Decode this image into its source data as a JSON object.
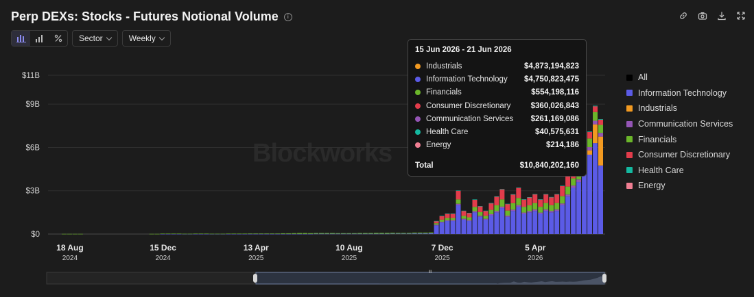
{
  "title": "Perp DEXs: Stocks - Futures Notional Volume",
  "toolbar": {
    "sector_label": "Sector",
    "period_label": "Weekly"
  },
  "watermark": "Blockworks",
  "icons": [
    "bar-chart-icon",
    "stacked-bar-icon",
    "percent-icon",
    "chevron-down-icon",
    "link-icon",
    "camera-icon",
    "download-icon",
    "expand-icon",
    "info-icon"
  ],
  "colors": {
    "background": "#1c1c1c",
    "Information Technology": "#5b5be6",
    "Industrials": "#f29a21",
    "Communication Services": "#9455b5",
    "Financials": "#6bb62a",
    "Consumer Discretionary": "#e23c4b",
    "Health Care": "#14b8a0",
    "Energy": "#ef7e92"
  },
  "legend": [
    {
      "name": "All",
      "color": "#000000"
    },
    {
      "name": "Information Technology",
      "color": "#5b5be6"
    },
    {
      "name": "Industrials",
      "color": "#f29a21"
    },
    {
      "name": "Communication Services",
      "color": "#9455b5"
    },
    {
      "name": "Financials",
      "color": "#6bb62a"
    },
    {
      "name": "Consumer Discretionary",
      "color": "#e23c4b"
    },
    {
      "name": "Health Care",
      "color": "#14b8a0"
    },
    {
      "name": "Energy",
      "color": "#ef7e92"
    }
  ],
  "tooltip": {
    "title": "15 Jun 2026 - 21 Jun 2026",
    "rows": [
      {
        "name": "Industrials",
        "value": "$4,873,194,823",
        "color": "#f29a21"
      },
      {
        "name": "Information Technology",
        "value": "$4,750,823,475",
        "color": "#5b5be6"
      },
      {
        "name": "Financials",
        "value": "$554,198,116",
        "color": "#6bb62a"
      },
      {
        "name": "Consumer Discretionary",
        "value": "$360,026,843",
        "color": "#e23c4b"
      },
      {
        "name": "Communication Services",
        "value": "$261,169,086",
        "color": "#9455b5"
      },
      {
        "name": "Health Care",
        "value": "$40,575,631",
        "color": "#14b8a0"
      },
      {
        "name": "Energy",
        "value": "$214,186",
        "color": "#ef7e92"
      }
    ],
    "total_label": "Total",
    "total_value": "$10,840,202,160"
  },
  "chart_data": {
    "type": "bar",
    "stacked": true,
    "y_unit": "USD (billions)",
    "ylim": [
      0,
      11
    ],
    "y_ticks": [
      {
        "value": 0,
        "label": "$0"
      },
      {
        "value": 3,
        "label": "$3B"
      },
      {
        "value": 6,
        "label": "$6B"
      },
      {
        "value": 9,
        "label": "$9B"
      },
      {
        "value": 11,
        "label": "$11B"
      }
    ],
    "x_ticks": [
      {
        "label": "18 Aug",
        "year": "2024",
        "index": 3
      },
      {
        "label": "15 Dec",
        "year": "2024",
        "index": 20
      },
      {
        "label": "13 Apr",
        "year": "2025",
        "index": 37
      },
      {
        "label": "10 Aug",
        "year": "2025",
        "index": 54
      },
      {
        "label": "7 Dec",
        "year": "2025",
        "index": 71
      },
      {
        "label": "5 Apr",
        "year": "2026",
        "index": 88
      }
    ],
    "grid": true,
    "legend_position": "right",
    "series": [
      {
        "name": "Information Technology",
        "values": [
          0,
          0,
          0,
          0,
          0,
          0,
          0,
          0,
          0,
          0,
          0,
          0,
          0,
          0,
          0,
          0,
          0,
          0,
          0,
          0,
          0.01,
          0.01,
          0.01,
          0.01,
          0.01,
          0.01,
          0.01,
          0.01,
          0.01,
          0.01,
          0.01,
          0.01,
          0.01,
          0.01,
          0.01,
          0.01,
          0.01,
          0.01,
          0.01,
          0.01,
          0.01,
          0.01,
          0.01,
          0.01,
          0.01,
          0.01,
          0.01,
          0.01,
          0.02,
          0.02,
          0.02,
          0.02,
          0.02,
          0.02,
          0.02,
          0.02,
          0.02,
          0.02,
          0.02,
          0.02,
          0.02,
          0.02,
          0.03,
          0.03,
          0.03,
          0.03,
          0.04,
          0.04,
          0.04,
          0.05,
          0.6,
          0.8,
          0.9,
          0.9,
          2.0,
          1.0,
          0.9,
          1.5,
          1.2,
          1.0,
          1.3,
          1.5,
          1.8,
          1.2,
          1.6,
          1.9,
          1.4,
          1.5,
          1.6,
          1.4,
          1.6,
          1.5,
          1.6,
          2.0,
          2.6,
          3.2,
          3.6,
          4.5,
          5.5,
          6.3,
          4.75
        ]
      },
      {
        "name": "Industrials",
        "values": [
          0,
          0,
          0,
          0,
          0,
          0,
          0,
          0,
          0,
          0,
          0,
          0,
          0,
          0,
          0,
          0,
          0,
          0,
          0,
          0,
          0,
          0,
          0,
          0,
          0,
          0,
          0,
          0,
          0,
          0,
          0,
          0,
          0,
          0,
          0,
          0,
          0,
          0,
          0,
          0,
          0,
          0,
          0,
          0,
          0,
          0,
          0,
          0,
          0,
          0,
          0,
          0,
          0,
          0,
          0,
          0,
          0,
          0,
          0,
          0,
          0,
          0,
          0,
          0,
          0,
          0,
          0,
          0,
          0,
          0,
          0,
          0,
          0,
          0,
          0,
          0,
          0,
          0,
          0,
          0,
          0,
          0,
          0,
          0,
          0,
          0,
          0,
          0,
          0,
          0,
          0,
          0,
          0,
          0,
          0,
          0,
          0,
          0,
          0.3,
          1.3,
          2.0,
          4.87
        ]
      },
      {
        "name": "Communication Services",
        "values": [
          0,
          0,
          0,
          0,
          0,
          0,
          0,
          0,
          0,
          0,
          0,
          0,
          0,
          0,
          0,
          0,
          0,
          0,
          0,
          0,
          0,
          0,
          0,
          0,
          0,
          0,
          0,
          0,
          0,
          0,
          0,
          0,
          0,
          0,
          0,
          0,
          0,
          0,
          0,
          0,
          0,
          0,
          0,
          0,
          0,
          0,
          0,
          0,
          0,
          0,
          0,
          0,
          0,
          0,
          0,
          0,
          0,
          0,
          0,
          0,
          0,
          0,
          0,
          0,
          0,
          0,
          0,
          0,
          0,
          0,
          0.05,
          0.05,
          0.06,
          0.06,
          0.1,
          0.06,
          0.06,
          0.08,
          0.07,
          0.06,
          0.08,
          0.09,
          0.1,
          0.08,
          0.09,
          0.1,
          0.09,
          0.09,
          0.1,
          0.09,
          0.1,
          0.1,
          0.1,
          0.12,
          0.14,
          0.16,
          0.18,
          0.2,
          0.22,
          0.25,
          0.26
        ]
      },
      {
        "name": "Financials",
        "values": [
          0,
          0,
          0.01,
          0.01,
          0.01,
          0.01,
          0,
          0,
          0,
          0,
          0,
          0,
          0,
          0,
          0,
          0,
          0,
          0,
          0.01,
          0.01,
          0.02,
          0.02,
          0.02,
          0.02,
          0.01,
          0.01,
          0.02,
          0.02,
          0.02,
          0.01,
          0.01,
          0.01,
          0.02,
          0.02,
          0.02,
          0.02,
          0.03,
          0.03,
          0.03,
          0.03,
          0.03,
          0.03,
          0.04,
          0.04,
          0.05,
          0.06,
          0.06,
          0.05,
          0.05,
          0.05,
          0.05,
          0.05,
          0.04,
          0.04,
          0.04,
          0.04,
          0.05,
          0.05,
          0.05,
          0.06,
          0.06,
          0.06,
          0.06,
          0.05,
          0.05,
          0.05,
          0.06,
          0.06,
          0.06,
          0.06,
          0.1,
          0.15,
          0.15,
          0.15,
          0.3,
          0.2,
          0.2,
          0.3,
          0.25,
          0.2,
          0.3,
          0.4,
          0.5,
          0.35,
          0.45,
          0.5,
          0.4,
          0.4,
          0.45,
          0.4,
          0.45,
          0.4,
          0.45,
          0.5,
          0.55,
          0.5,
          0.6,
          0.7,
          0.6,
          0.6,
          0.55
        ]
      },
      {
        "name": "Consumer Discretionary",
        "values": [
          0,
          0,
          0,
          0,
          0,
          0,
          0,
          0,
          0,
          0,
          0,
          0,
          0,
          0,
          0,
          0,
          0,
          0,
          0,
          0,
          0,
          0,
          0,
          0,
          0,
          0,
          0,
          0,
          0,
          0,
          0,
          0,
          0,
          0,
          0,
          0,
          0,
          0,
          0,
          0,
          0,
          0,
          0,
          0,
          0,
          0,
          0,
          0,
          0,
          0,
          0,
          0,
          0,
          0,
          0,
          0,
          0,
          0,
          0,
          0,
          0,
          0,
          0,
          0,
          0,
          0,
          0,
          0,
          0,
          0,
          0.15,
          0.25,
          0.3,
          0.3,
          0.6,
          0.35,
          0.3,
          0.5,
          0.4,
          0.35,
          0.45,
          0.6,
          0.7,
          0.45,
          0.6,
          0.7,
          0.5,
          0.55,
          0.6,
          0.5,
          0.6,
          0.55,
          0.6,
          0.7,
          0.75,
          0.6,
          0.55,
          0.5,
          0.45,
          0.4,
          0.36
        ]
      },
      {
        "name": "Health Care",
        "values": [
          0,
          0,
          0,
          0,
          0,
          0,
          0,
          0,
          0,
          0,
          0,
          0,
          0,
          0,
          0,
          0,
          0,
          0,
          0,
          0,
          0,
          0,
          0,
          0,
          0,
          0,
          0,
          0,
          0,
          0,
          0,
          0,
          0,
          0,
          0,
          0,
          0,
          0,
          0,
          0,
          0,
          0,
          0,
          0,
          0,
          0,
          0,
          0,
          0,
          0,
          0,
          0,
          0,
          0,
          0,
          0,
          0,
          0,
          0,
          0,
          0,
          0,
          0,
          0,
          0,
          0,
          0,
          0,
          0,
          0,
          0.01,
          0.01,
          0.01,
          0.01,
          0.02,
          0.01,
          0.01,
          0.02,
          0.02,
          0.01,
          0.02,
          0.02,
          0.02,
          0.02,
          0.02,
          0.02,
          0.02,
          0.02,
          0.02,
          0.02,
          0.02,
          0.02,
          0.02,
          0.03,
          0.03,
          0.03,
          0.03,
          0.04,
          0.04,
          0.04,
          0.04
        ]
      },
      {
        "name": "Energy",
        "values": [
          0,
          0,
          0,
          0,
          0,
          0,
          0,
          0,
          0,
          0,
          0,
          0,
          0,
          0,
          0,
          0,
          0,
          0,
          0,
          0,
          0,
          0,
          0,
          0,
          0,
          0,
          0,
          0,
          0,
          0,
          0,
          0,
          0,
          0,
          0,
          0,
          0,
          0,
          0,
          0,
          0,
          0,
          0,
          0,
          0,
          0,
          0,
          0,
          0,
          0,
          0,
          0,
          0,
          0,
          0,
          0,
          0,
          0,
          0,
          0,
          0,
          0,
          0,
          0,
          0,
          0,
          0,
          0,
          0,
          0,
          0,
          0,
          0,
          0,
          0,
          0,
          0,
          0,
          0,
          0,
          0,
          0,
          0,
          0,
          0,
          0,
          0,
          0,
          0,
          0,
          0,
          0,
          0,
          0,
          0,
          0,
          0,
          0,
          0,
          0,
          0
        ]
      }
    ]
  },
  "navigator": {
    "handle_label": "III"
  }
}
